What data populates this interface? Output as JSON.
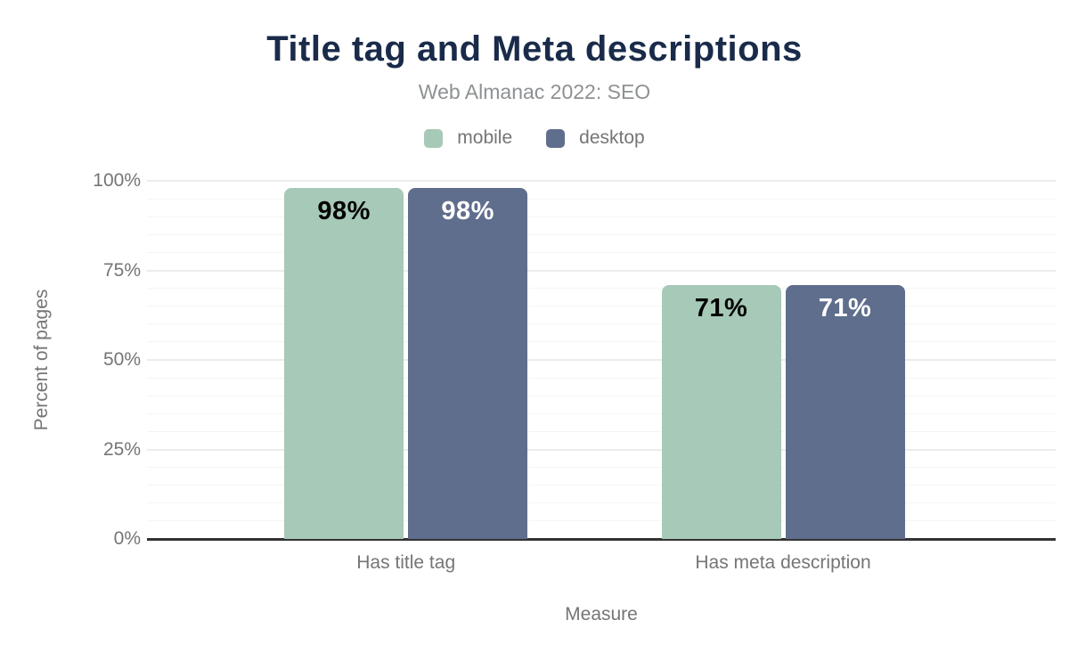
{
  "chart_data": {
    "type": "bar",
    "title": "Title tag and Meta descriptions",
    "subtitle": "Web Almanac 2022: SEO",
    "categories": [
      "Has title tag",
      "Has meta description"
    ],
    "series": [
      {
        "name": "mobile",
        "color": "#a7c9b7",
        "label_color": "#000000",
        "values": [
          98,
          71
        ]
      },
      {
        "name": "desktop",
        "color": "#5f6e8c",
        "label_color": "#ffffff",
        "values": [
          98,
          71
        ]
      }
    ],
    "xlabel": "Measure",
    "ylabel": "Percent of pages",
    "ylim": [
      0,
      100
    ],
    "yticks": [
      0,
      25,
      50,
      75,
      100
    ],
    "ytick_format": "{v}%",
    "datalabel_format": "{v}%",
    "minor_grid_step": 5,
    "grid": true,
    "legend_position": "top"
  },
  "colors": {
    "title": "#1a2b4a",
    "subtitle": "#8e9193",
    "axis_text": "#757575",
    "axis_line": "#333333",
    "major_grid": "#ececec",
    "minor_grid": "#f5f5f5",
    "background": "#ffffff"
  }
}
